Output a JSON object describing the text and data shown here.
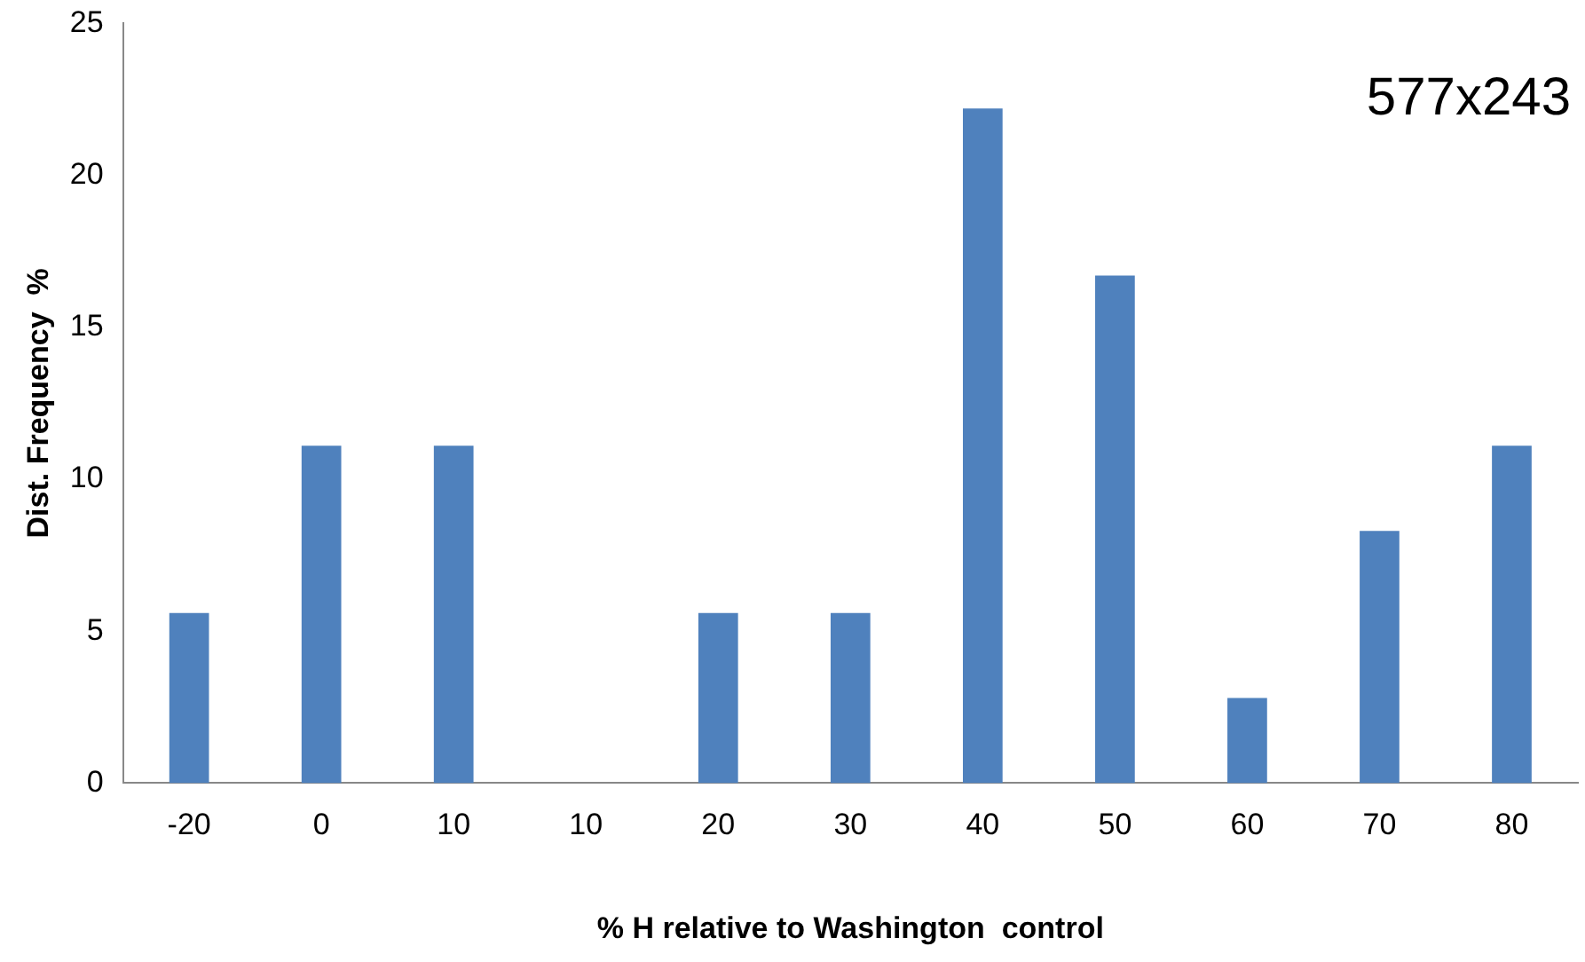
{
  "chart_data": {
    "type": "bar",
    "xlabel": "% H relative to Washington  control",
    "ylabel": "Dist. Frequency  %",
    "categories": [
      "-20",
      "0",
      "10",
      "10",
      "20",
      "30",
      "40",
      "50",
      "60",
      "70",
      "80"
    ],
    "values": [
      5.6,
      11.1,
      11.1,
      0,
      5.6,
      5.6,
      22.2,
      16.7,
      2.8,
      8.3,
      11.1
    ],
    "color": "#4f81bd",
    "ylim": [
      0,
      25
    ],
    "yticks": [
      0,
      5,
      10,
      15,
      20,
      25
    ],
    "grid": false,
    "legend": false,
    "annotations": [
      "577x243"
    ]
  }
}
